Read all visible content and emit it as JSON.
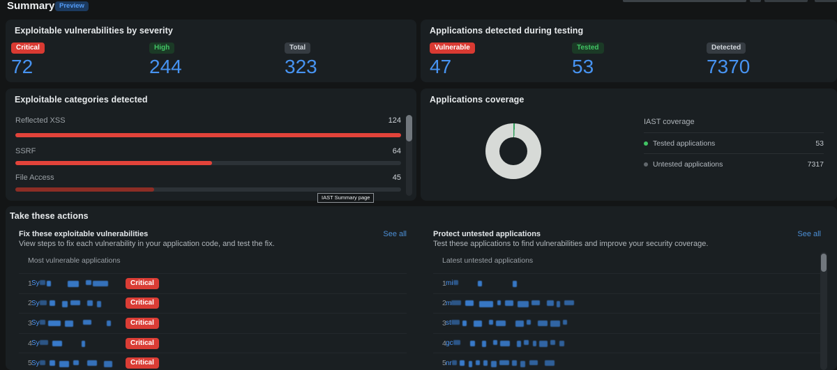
{
  "header": {
    "title": "Summary",
    "preview_badge": "Preview"
  },
  "colors": {
    "page_bg": "#131516",
    "panel_bg": "#1a1f22",
    "accent_blue": "#4793f1",
    "link_blue": "#4c8fd6",
    "critical_red": "#d93a32",
    "green": "#41c464",
    "bar_red": "#e2433a",
    "bar_dark_red": "#8c2d25",
    "donut_gray": "#d7dad7",
    "donut_green": "#2f9e5b"
  },
  "severity_panel": {
    "title": "Exploitable vulnerabilities by severity",
    "stats": [
      {
        "label": "Critical",
        "variant": "red",
        "value": "72"
      },
      {
        "label": "High",
        "variant": "green",
        "value": "244"
      },
      {
        "label": "Total",
        "variant": "gray",
        "value": "323"
      }
    ]
  },
  "detected_panel": {
    "title": "Applications detected during testing",
    "stats": [
      {
        "label": "Vulnerable",
        "variant": "red",
        "value": "47"
      },
      {
        "label": "Tested",
        "variant": "green",
        "value": "53"
      },
      {
        "label": "Detected",
        "variant": "gray",
        "value": "7370"
      }
    ]
  },
  "categories_panel": {
    "title": "Exploitable categories detected",
    "rows": [
      {
        "label": "Reflected XSS",
        "value": "124",
        "pct": 100,
        "color": "#e2433a"
      },
      {
        "label": "SSRF",
        "value": "64",
        "pct": 51,
        "color": "#e2433a"
      },
      {
        "label": "File Access",
        "value": "45",
        "pct": 36,
        "color": "#8c2d25"
      }
    ],
    "tooltip": "IAST Summary page"
  },
  "coverage_panel": {
    "title": "Applications coverage",
    "legend_title": "IAST coverage",
    "rows": [
      {
        "label": "Tested applications",
        "value": "53",
        "dot": "#41c464"
      },
      {
        "label": "Untested applications",
        "value": "7317",
        "dot": "#62686d"
      }
    ]
  },
  "actions_panel": {
    "title": "Take these actions",
    "fix": {
      "title": "Fix these exploitable vulnerabilities",
      "see_all": "See all",
      "description": "View steps to fix each vulnerability in your application code, and test the fix.",
      "list_title": "Most vulnerable applications",
      "rows": [
        {
          "rank": "1",
          "prefix": "Sy",
          "badge": "Critical",
          "blocks": [
            [
              8,
              2
            ],
            [
              6,
              24
            ],
            [
              16,
              10
            ],
            [
              8,
              2
            ],
            [
              22,
              0
            ]
          ]
        },
        {
          "rank": "2",
          "prefix": "Sy",
          "badge": "Critical",
          "blocks": [
            [
              10,
              4
            ],
            [
              8,
              10
            ],
            [
              8,
              4
            ],
            [
              14,
              10
            ],
            [
              8,
              6
            ],
            [
              6,
              0
            ]
          ]
        },
        {
          "rank": "3",
          "prefix": "Sy",
          "badge": "Critical",
          "blocks": [
            [
              8,
              4
            ],
            [
              18,
              6
            ],
            [
              12,
              14
            ],
            [
              12,
              22
            ],
            [
              6,
              0
            ]
          ]
        },
        {
          "rank": "4",
          "prefix": "Sy",
          "badge": "Critical",
          "blocks": [
            [
              12,
              6
            ],
            [
              14,
              28
            ],
            [
              5,
              0
            ]
          ]
        },
        {
          "rank": "5",
          "prefix": "Sy",
          "badge": "Critical",
          "blocks": [
            [
              8,
              6
            ],
            [
              8,
              6
            ],
            [
              14,
              6
            ],
            [
              8,
              12
            ],
            [
              14,
              10
            ],
            [
              12,
              0
            ]
          ]
        }
      ]
    },
    "protect": {
      "title": "Protect untested applications",
      "see_all": "See all",
      "description": "Test these applications to find vulnerabilities and improve your security coverage.",
      "list_title": "Latest untested applications",
      "rows": [
        {
          "rank": "1",
          "prefix": "mi",
          "blocks": [
            [
              7,
              28
            ],
            [
              6,
              44
            ],
            [
              6,
              0
            ]
          ]
        },
        {
          "rank": "2",
          "prefix": "m",
          "blocks": [
            [
              14,
              6
            ],
            [
              12,
              8
            ],
            [
              20,
              6
            ],
            [
              5,
              6
            ],
            [
              12,
              6
            ],
            [
              16,
              4
            ],
            [
              12,
              10
            ],
            [
              10,
              4
            ],
            [
              5,
              6
            ],
            [
              14,
              0
            ]
          ]
        },
        {
          "rank": "3",
          "prefix": "st",
          "blocks": [
            [
              12,
              4
            ],
            [
              6,
              10
            ],
            [
              12,
              10
            ],
            [
              6,
              4
            ],
            [
              14,
              14
            ],
            [
              12,
              4
            ],
            [
              6,
              10
            ],
            [
              14,
              4
            ],
            [
              14,
              4
            ],
            [
              6,
              0
            ]
          ]
        },
        {
          "rank": "4",
          "prefix": "gc",
          "blocks": [
            [
              10,
              14
            ],
            [
              7,
              10
            ],
            [
              6,
              10
            ],
            [
              6,
              4
            ],
            [
              14,
              10
            ],
            [
              6,
              4
            ],
            [
              7,
              6
            ],
            [
              5,
              4
            ],
            [
              12,
              4
            ],
            [
              7,
              6
            ],
            [
              7,
              0
            ]
          ]
        },
        {
          "rank": "5",
          "prefix": "nr",
          "blocks": [
            [
              7,
              4
            ],
            [
              7,
              6
            ],
            [
              5,
              5
            ],
            [
              6,
              5
            ],
            [
              6,
              5
            ],
            [
              8,
              4
            ],
            [
              14,
              4
            ],
            [
              7,
              5
            ],
            [
              7,
              6
            ],
            [
              12,
              10
            ],
            [
              14,
              0
            ]
          ]
        }
      ]
    }
  },
  "chart_data": [
    {
      "type": "bar",
      "title": "Exploitable categories detected",
      "categories": [
        "Reflected XSS",
        "SSRF",
        "File Access"
      ],
      "values": [
        124,
        64,
        45
      ],
      "xlim": [
        0,
        124
      ],
      "orientation": "horizontal"
    },
    {
      "type": "pie",
      "title": "Applications coverage",
      "categories": [
        "Tested applications",
        "Untested applications"
      ],
      "values": [
        53,
        7317
      ],
      "legend_position": "right",
      "donut": true
    }
  ]
}
